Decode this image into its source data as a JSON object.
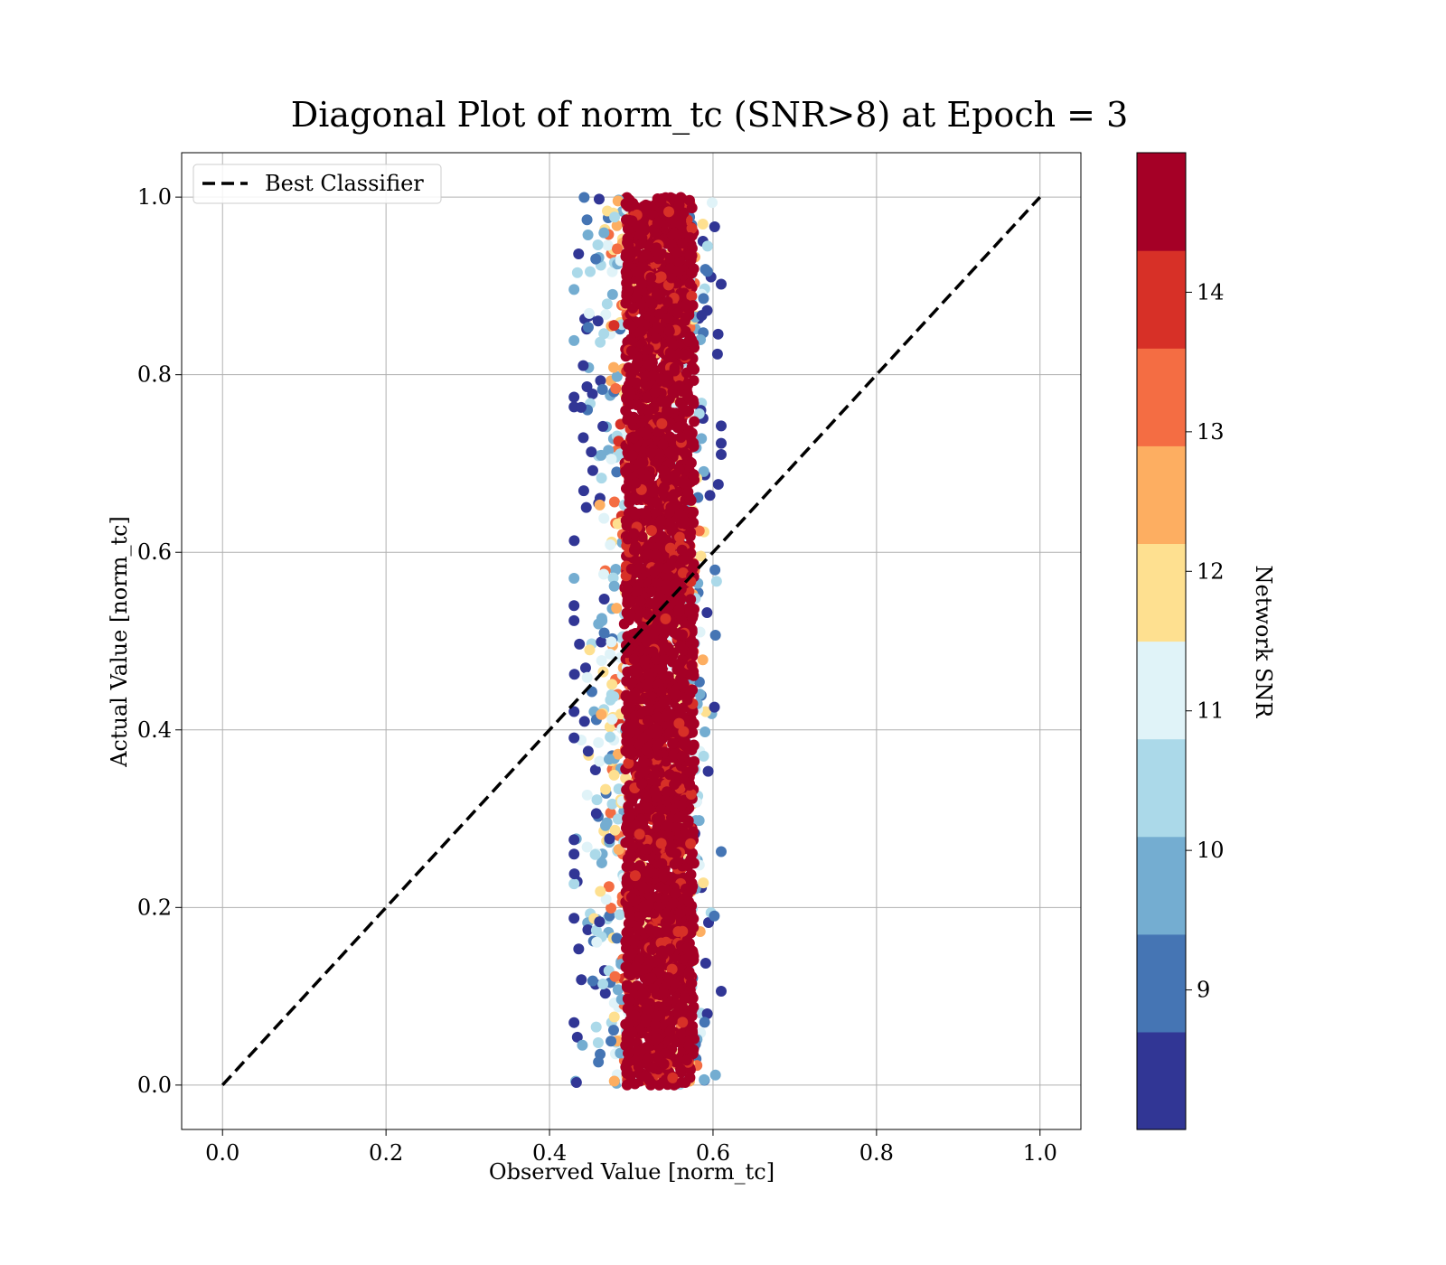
{
  "chart_data": {
    "type": "scatter",
    "title": "Diagonal Plot of norm_tc (SNR>8) at Epoch = 3",
    "xlabel": "Observed Value [norm_tc]",
    "ylabel": "Actual Value [norm_tc]",
    "xlim": [
      -0.05,
      1.05
    ],
    "ylim": [
      -0.05,
      1.05
    ],
    "xticks": [
      "0.0",
      "0.2",
      "0.4",
      "0.6",
      "0.8",
      "1.0"
    ],
    "yticks": [
      "0.0",
      "0.2",
      "0.4",
      "0.6",
      "0.8",
      "1.0"
    ],
    "grid": true,
    "legend": {
      "placement": "top-left",
      "entries": [
        {
          "label": "Best Classifier",
          "style": "dashed",
          "color": "#000000"
        }
      ]
    },
    "reference_line": {
      "name": "Best Classifier",
      "x": [
        0,
        1
      ],
      "y": [
        0,
        1
      ],
      "style": "dashed",
      "color": "#000000"
    },
    "scatter_summary": {
      "x_range": [
        0.43,
        0.61
      ],
      "x_core_range": [
        0.49,
        0.58
      ],
      "y_range": [
        0.0,
        1.0
      ],
      "dominant_color_value": "> 14.5"
    },
    "colorbar": {
      "label": "Network SNR",
      "range": [
        8.0,
        15.0
      ],
      "ticks": [
        "9",
        "10",
        "11",
        "12",
        "13",
        "14"
      ],
      "colors": [
        "#313695",
        "#4575b4",
        "#74add1",
        "#abd9e9",
        "#e0f3f8",
        "#fee090",
        "#fdae61",
        "#f46d43",
        "#d73027",
        "#a50026"
      ]
    }
  }
}
